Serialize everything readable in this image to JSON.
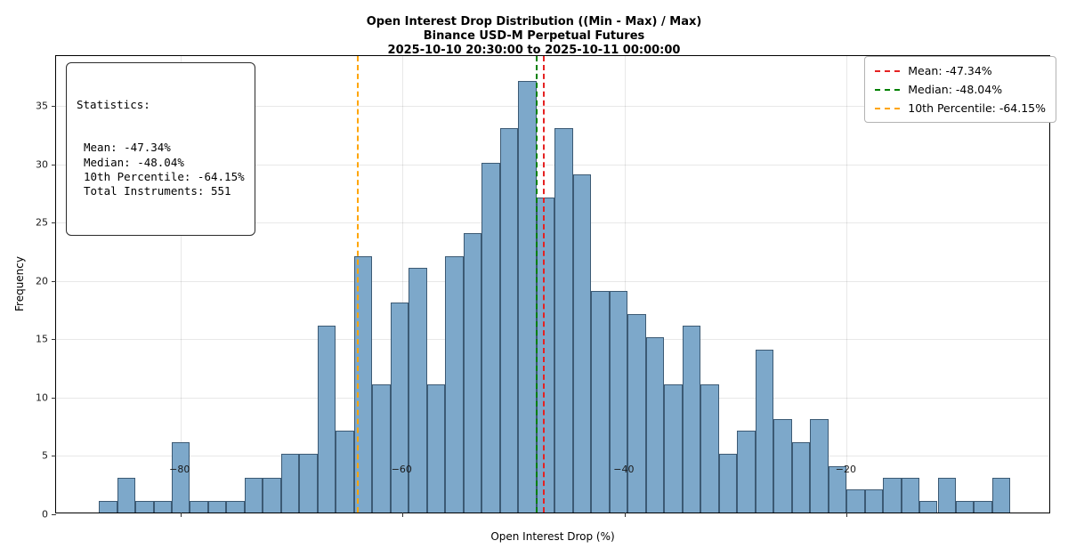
{
  "title": {
    "line1": "Open Interest Drop Distribution ((Min - Max) / Max)",
    "line2": "Binance USD-M Perpetual Futures",
    "line3": "2025-10-10 20:30:00 to 2025-10-11 00:00:00"
  },
  "stats_box": {
    "title": "Statistics:",
    "lines": [
      "Mean: -47.34%",
      "Median: -48.04%",
      "10th Percentile: -64.15%",
      "Total Instruments: 551"
    ]
  },
  "legend": {
    "items": [
      {
        "label": "Mean: -47.34%",
        "color": "#e52222"
      },
      {
        "label": "Median: -48.04%",
        "color": "#008000"
      },
      {
        "label": "10th Percentile: -64.15%",
        "color": "#ffa500"
      }
    ]
  },
  "chart_data": {
    "type": "bar",
    "subtype": "histogram",
    "title": "Open Interest Drop Distribution ((Min - Max) / Max) — Binance USD-M Perpetual Futures — 2025-10-10 20:30:00 to 2025-10-11 00:00:00",
    "xlabel": "Open Interest Drop (%)",
    "ylabel": "Frequency",
    "xlim": [
      -91.2,
      -1.6
    ],
    "ylim": [
      0,
      39.3
    ],
    "x_ticks": [
      -80,
      -60,
      -40,
      -20
    ],
    "y_ticks": [
      0,
      5,
      10,
      15,
      20,
      25,
      30,
      35
    ],
    "grid": true,
    "legend_position": "upper right",
    "bar_fill": "#7da8ca",
    "bar_edge": "#3c5a74",
    "bin_start": -87.35,
    "bin_width": 1.642,
    "counts": [
      1,
      3,
      1,
      1,
      6,
      1,
      1,
      1,
      3,
      3,
      5,
      5,
      16,
      7,
      22,
      11,
      18,
      21,
      11,
      22,
      24,
      30,
      33,
      37,
      27,
      33,
      29,
      19,
      19,
      17,
      15,
      11,
      16,
      11,
      5,
      7,
      14,
      8,
      6,
      8,
      4,
      2,
      2,
      3,
      3,
      1,
      3,
      1,
      1,
      3
    ],
    "total_instruments": 551,
    "vlines": [
      {
        "name": "mean-line",
        "x": -47.34,
        "color": "#e52222",
        "label": "Mean: -47.34%"
      },
      {
        "name": "median-line",
        "x": -48.04,
        "color": "#008000",
        "label": "Median: -48.04%"
      },
      {
        "name": "p10-line",
        "x": -64.15,
        "color": "#ffa500",
        "label": "10th Percentile: -64.15%"
      }
    ]
  }
}
